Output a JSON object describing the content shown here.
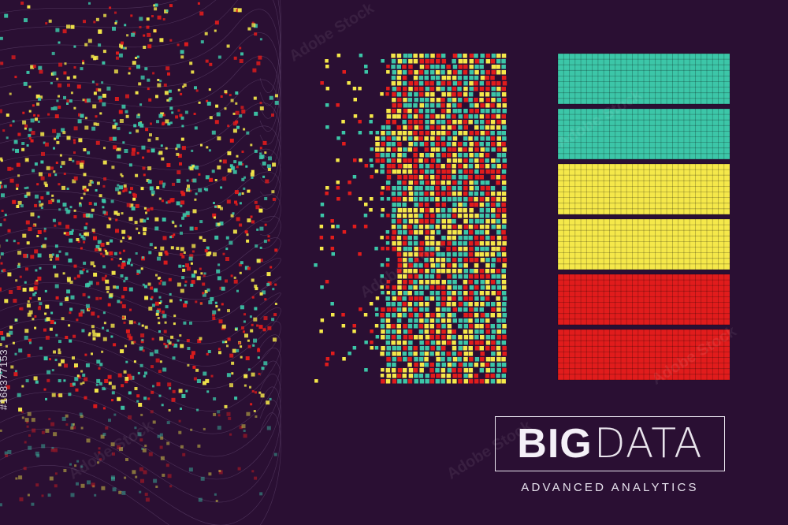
{
  "title": {
    "bold": "BIG",
    "thin": "DATA"
  },
  "subtitle": "ADVANCED ANALYTICS",
  "side_credit": "#168377153",
  "watermark_text": "Adobe Stock",
  "colors": {
    "background": "#2a0f33",
    "teal": "#3cc6a8",
    "yellow": "#f5e84a",
    "red": "#e11c1c",
    "frame": "#e9e4ef"
  }
}
